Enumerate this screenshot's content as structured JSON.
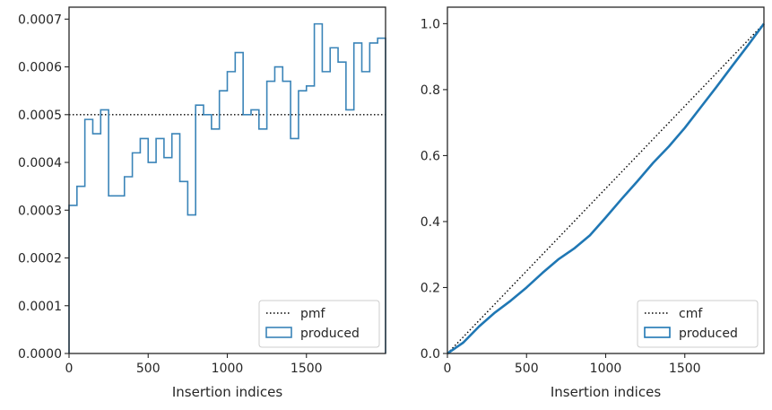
{
  "chart_data": [
    {
      "type": "histogram-step",
      "xlabel": "Insertion indices",
      "ylabel": "",
      "xlim": [
        0,
        2000
      ],
      "ylim": [
        0,
        0.000725
      ],
      "xticks": [
        0,
        500,
        1000,
        1500
      ],
      "xtick_labels": [
        "0",
        "500",
        "1000",
        "1500"
      ],
      "yticks": [
        0,
        0.0001,
        0.0002,
        0.0003,
        0.0004,
        0.0005,
        0.0006,
        0.0007
      ],
      "ytick_labels": [
        "0.0000",
        "0.0001",
        "0.0002",
        "0.0003",
        "0.0004",
        "0.0005",
        "0.0006",
        "0.0007"
      ],
      "grid": false,
      "legend_position": "lower-right",
      "series": [
        {
          "name": "pmf",
          "kind": "dotted-line",
          "color": "#000000",
          "value": 0.0005
        },
        {
          "name": "produced",
          "kind": "step-histogram",
          "color": "#3a84b8",
          "bin_width": 50,
          "bin_starts": [
            0,
            50,
            100,
            150,
            200,
            250,
            300,
            350,
            400,
            450,
            500,
            550,
            600,
            650,
            700,
            750,
            800,
            850,
            900,
            950,
            1000,
            1050,
            1100,
            1150,
            1200,
            1250,
            1300,
            1350,
            1400,
            1450,
            1500,
            1550,
            1600,
            1650,
            1700,
            1750,
            1800,
            1850,
            1900,
            1950
          ],
          "values": [
            0.00031,
            0.00035,
            0.00049,
            0.00046,
            0.00051,
            0.00033,
            0.00033,
            0.00037,
            0.00042,
            0.00045,
            0.0004,
            0.00045,
            0.00041,
            0.00046,
            0.00036,
            0.00029,
            0.00052,
            0.0005,
            0.00047,
            0.00055,
            0.00059,
            0.00063,
            0.0005,
            0.00051,
            0.00047,
            0.00057,
            0.0006,
            0.00057,
            0.00045,
            0.00055,
            0.00056,
            0.00069,
            0.00059,
            0.00064,
            0.00061,
            0.00051,
            0.00065,
            0.00059,
            0.00065,
            0.00066
          ]
        }
      ]
    },
    {
      "type": "line",
      "xlabel": "Insertion indices",
      "ylabel": "",
      "xlim": [
        0,
        2000
      ],
      "ylim": [
        0,
        1.05
      ],
      "xticks": [
        0,
        500,
        1000,
        1500
      ],
      "xtick_labels": [
        "0",
        "500",
        "1000",
        "1500"
      ],
      "yticks": [
        0,
        0.2,
        0.4,
        0.6,
        0.8,
        1.0
      ],
      "ytick_labels": [
        "0.0",
        "0.2",
        "0.4",
        "0.6",
        "0.8",
        "1.0"
      ],
      "grid": false,
      "legend_position": "lower-right",
      "series": [
        {
          "name": "cmf",
          "kind": "dotted-line",
          "color": "#000000",
          "x": [
            0,
            2000
          ],
          "y": [
            0,
            1.0
          ]
        },
        {
          "name": "produced",
          "kind": "line",
          "color": "#1f77b4",
          "x": [
            0,
            100,
            200,
            300,
            400,
            500,
            600,
            700,
            800,
            900,
            1000,
            1100,
            1200,
            1300,
            1400,
            1500,
            1600,
            1700,
            1800,
            1900,
            2000
          ],
          "y": [
            0,
            0.033,
            0.082,
            0.124,
            0.16,
            0.2,
            0.244,
            0.285,
            0.318,
            0.358,
            0.412,
            0.468,
            0.522,
            0.578,
            0.628,
            0.684,
            0.746,
            0.808,
            0.872,
            0.935,
            1.0
          ]
        }
      ]
    }
  ]
}
